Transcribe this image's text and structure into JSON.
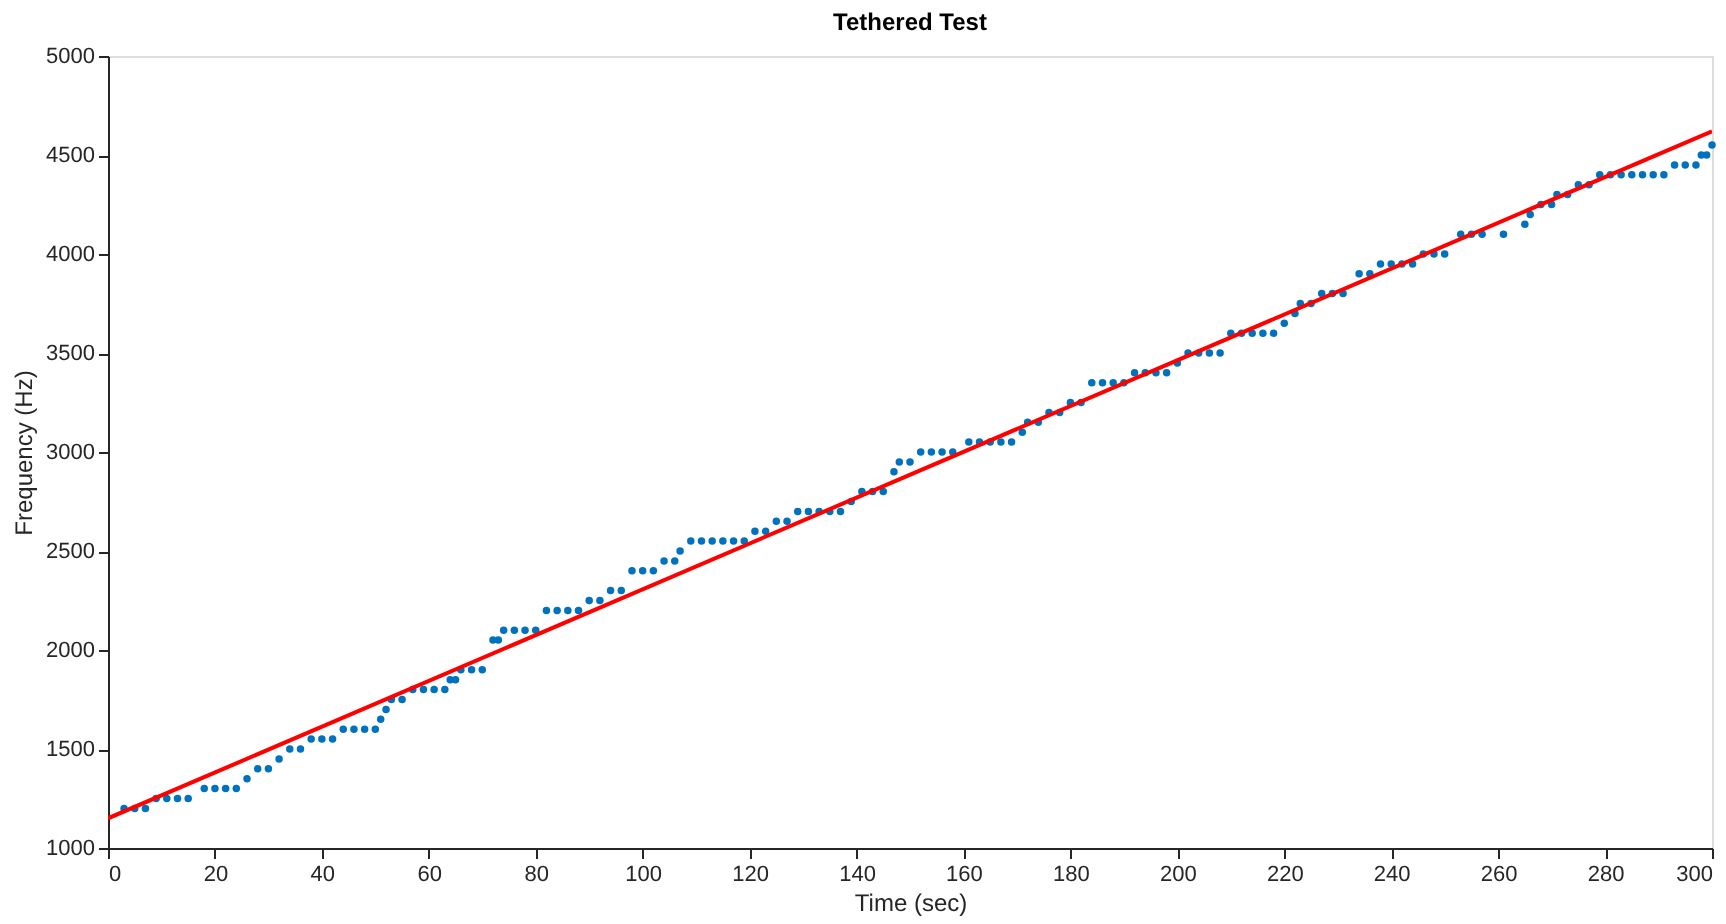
{
  "chart_data": {
    "type": "scatter",
    "title": "Tethered Test",
    "xlabel": "Time (sec)",
    "ylabel": "Frequency (Hz)",
    "xlim": [
      0,
      300
    ],
    "xticks": [
      0,
      20,
      40,
      60,
      80,
      100,
      120,
      140,
      160,
      180,
      200,
      220,
      240,
      260,
      280,
      300
    ],
    "ylim": [
      1000,
      5000
    ],
    "yticks": [
      1000,
      1500,
      2000,
      2500,
      3000,
      3500,
      4000,
      4500,
      5000
    ],
    "grid": false,
    "legend": false,
    "series": [
      {
        "color": "#0072bd",
        "marker": "circle",
        "x": [
          3,
          5,
          7,
          9,
          11,
          13,
          15,
          18,
          20,
          22,
          24,
          26,
          28,
          30,
          32,
          34,
          36,
          38,
          40,
          42,
          44,
          46,
          48,
          50,
          51,
          52,
          53,
          55,
          57,
          59,
          61,
          63,
          64,
          65,
          66,
          68,
          70,
          72,
          73,
          74,
          76,
          78,
          80,
          82,
          84,
          86,
          88,
          90,
          92,
          94,
          96,
          98,
          100,
          102,
          104,
          106,
          107,
          109,
          111,
          113,
          115,
          117,
          119,
          121,
          123,
          125,
          127,
          129,
          131,
          133,
          135,
          137,
          139,
          141,
          143,
          145,
          147,
          148,
          150,
          152,
          154,
          156,
          158,
          161,
          163,
          165,
          167,
          169,
          171,
          172,
          174,
          176,
          178,
          180,
          182,
          184,
          186,
          188,
          190,
          192,
          194,
          196,
          198,
          200,
          202,
          204,
          206,
          208,
          210,
          212,
          214,
          216,
          218,
          220,
          222,
          223,
          225,
          227,
          229,
          231,
          234,
          236,
          238,
          240,
          242,
          244,
          246,
          248,
          250,
          253,
          255,
          257,
          261,
          265,
          266,
          268,
          270,
          271,
          273,
          275,
          277,
          279,
          281,
          283,
          285,
          287,
          289,
          291,
          293,
          295,
          297,
          298,
          299,
          300
        ],
        "values": [
          1200,
          1200,
          1200,
          1250,
          1250,
          1250,
          1250,
          1300,
          1300,
          1300,
          1300,
          1350,
          1400,
          1400,
          1450,
          1500,
          1500,
          1550,
          1550,
          1550,
          1600,
          1600,
          1600,
          1600,
          1650,
          1700,
          1750,
          1750,
          1800,
          1800,
          1800,
          1800,
          1850,
          1850,
          1900,
          1900,
          1900,
          2050,
          2050,
          2100,
          2100,
          2100,
          2100,
          2200,
          2200,
          2200,
          2200,
          2250,
          2250,
          2300,
          2300,
          2400,
          2400,
          2400,
          2450,
          2450,
          2500,
          2550,
          2550,
          2550,
          2550,
          2550,
          2550,
          2600,
          2600,
          2650,
          2650,
          2700,
          2700,
          2700,
          2700,
          2700,
          2750,
          2800,
          2800,
          2800,
          2900,
          2950,
          2950,
          3000,
          3000,
          3000,
          3000,
          3050,
          3050,
          3050,
          3050,
          3050,
          3100,
          3150,
          3150,
          3200,
          3200,
          3250,
          3250,
          3350,
          3350,
          3350,
          3350,
          3400,
          3400,
          3400,
          3400,
          3450,
          3500,
          3500,
          3500,
          3500,
          3600,
          3600,
          3600,
          3600,
          3600,
          3650,
          3700,
          3750,
          3750,
          3800,
          3800,
          3800,
          3900,
          3900,
          3950,
          3950,
          3950,
          3950,
          4000,
          4000,
          4000,
          4100,
          4100,
          4100,
          4100,
          4150,
          4200,
          4250,
          4250,
          4300,
          4300,
          4350,
          4350,
          4400,
          4400,
          4400,
          4400,
          4400,
          4400,
          4400,
          4450,
          4450,
          4450,
          4500,
          4500,
          4550
        ]
      },
      {
        "type": "line",
        "marker": "none",
        "color": "#ff0000",
        "x": [
          0,
          300
        ],
        "values": [
          1150,
          4620
        ]
      }
    ]
  }
}
